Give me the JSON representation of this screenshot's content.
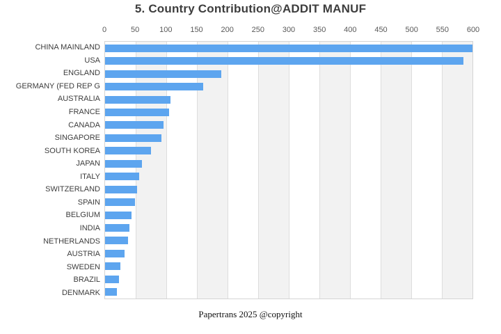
{
  "title": "5. Country Contribution@ADDIT MANUF",
  "footer": "Papertrans 2025 @copyright",
  "colors": {
    "bar": "#5da5ef",
    "stripe": "#f2f2f2",
    "gridline": "#dddddd",
    "plot_border": "#d4d4d4",
    "title_text": "#3d3d3d",
    "tick_text": "#595959",
    "category_text": "#3d3d3d"
  },
  "chart_data": {
    "type": "bar",
    "orientation": "horizontal",
    "title": "5. Country Contribution@ADDIT MANUF",
    "xlabel": "",
    "ylabel": "",
    "xlim": [
      0,
      600
    ],
    "x_ticks": [
      0,
      50,
      100,
      150,
      200,
      250,
      300,
      350,
      400,
      450,
      500,
      550,
      600
    ],
    "grid": true,
    "legend": false,
    "categories": [
      "CHINA MAINLAND",
      "USA",
      "ENGLAND",
      "GERMANY (FED REP G",
      "AUSTRALIA",
      "FRANCE",
      "CANADA",
      "SINGAPORE",
      "SOUTH KOREA",
      "JAPAN",
      "ITALY",
      "SWITZERLAND",
      "SPAIN",
      "BELGIUM",
      "INDIA",
      "NETHERLANDS",
      "AUSTRIA",
      "SWEDEN",
      "BRAZIL",
      "DENMARK"
    ],
    "values": [
      600,
      585,
      190,
      160,
      107,
      105,
      96,
      92,
      75,
      60,
      56,
      52,
      49,
      43,
      40,
      38,
      32,
      25,
      23,
      19
    ]
  }
}
